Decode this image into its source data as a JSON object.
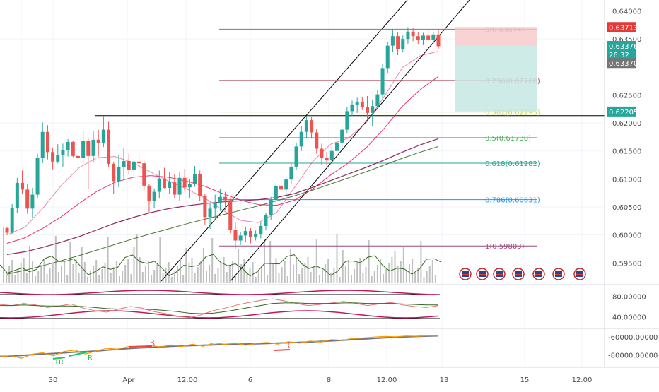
{
  "colors": {
    "candle_up": "#26a69a",
    "candle_down": "#ef5350",
    "grid": "#f0f3fa",
    "axis_text": "#4a4a4a",
    "fib_0": "#787b86",
    "fib_0236": "#b2475a",
    "fib_0382": "#c6d64a",
    "fib_05": "#4caf50",
    "fib_0618": "#26a69a",
    "fib_0786": "#2196f3",
    "fib_1": "#9c4a7e",
    "ma_fast": "#e91e63",
    "ma_slow": "#880e4f",
    "ma_long": "#33691e",
    "volume": "#b0b0b0",
    "rsi": "#e57373",
    "osc_main": "#ff9800",
    "osc_signal": "#757575",
    "channel": "#000000"
  },
  "chart_data": [
    {
      "type": "candlestick",
      "x_labels": [
        "30",
        "Apr",
        "12:00",
        "6",
        "8",
        "12:00",
        "13",
        "15",
        "12:00"
      ],
      "price_ticks": [
        "0.64000",
        "0.63500",
        "0.62500",
        "0.62000",
        "0.61500",
        "0.61000",
        "0.60500",
        "0.60000",
        "0.59500"
      ],
      "ylim": [
        0.5915,
        0.6412
      ],
      "fib_levels": [
        {
          "label": "0(0.63674)",
          "value": 0.63674
        },
        {
          "label": "0.236(0.62760)",
          "value": 0.6276
        },
        {
          "label": "0.382(0.62195)",
          "value": 0.62195
        },
        {
          "label": "0.5(0.61738)",
          "value": 0.61738
        },
        {
          "label": "0.618(0.61282)",
          "value": 0.61282
        },
        {
          "label": "0.786(0.60631)",
          "value": 0.60631
        },
        {
          "label": "1(0.59803)",
          "value": 0.59803
        }
      ],
      "price_badges": [
        {
          "label": "0.63713",
          "value": 0.63713,
          "color": "#e53935"
        },
        {
          "label": "0.63376",
          "value": 0.63376,
          "color": "#26a69a"
        },
        {
          "label": "26:32",
          "value": 0.63225,
          "color": "#26a69a"
        },
        {
          "label": "0.63370",
          "value": 0.6307,
          "color": "#757575"
        },
        {
          "label": "0.62205",
          "value": 0.62205,
          "color": "#26a69a"
        }
      ],
      "horizontal_line": 0.6213,
      "ohlc": [
        [
          0.6012,
          0.6015,
          0.6,
          0.6004
        ],
        [
          0.6004,
          0.6055,
          0.6001,
          0.6048
        ],
        [
          0.6048,
          0.6102,
          0.604,
          0.6093
        ],
        [
          0.6093,
          0.6115,
          0.6073,
          0.6081
        ],
        [
          0.6081,
          0.6092,
          0.6038,
          0.6047
        ],
        [
          0.6047,
          0.6084,
          0.6031,
          0.6072
        ],
        [
          0.6072,
          0.6145,
          0.6065,
          0.6138
        ],
        [
          0.6138,
          0.6201,
          0.6128,
          0.6184
        ],
        [
          0.6184,
          0.6196,
          0.6135,
          0.6148
        ],
        [
          0.6148,
          0.6156,
          0.6117,
          0.6131
        ],
        [
          0.6131,
          0.6162,
          0.6128,
          0.6143
        ],
        [
          0.6143,
          0.6163,
          0.6122,
          0.6152
        ],
        [
          0.6152,
          0.6171,
          0.614,
          0.6166
        ],
        [
          0.6166,
          0.6168,
          0.6139,
          0.6141
        ],
        [
          0.6141,
          0.615,
          0.6114,
          0.6137
        ],
        [
          0.6137,
          0.6185,
          0.6127,
          0.6168
        ],
        [
          0.6168,
          0.6172,
          0.6082,
          0.6141
        ],
        [
          0.6141,
          0.6186,
          0.6129,
          0.617
        ],
        [
          0.617,
          0.6188,
          0.614,
          0.6164
        ],
        [
          0.6164,
          0.6212,
          0.6157,
          0.6188
        ],
        [
          0.6188,
          0.6202,
          0.6122,
          0.6127
        ],
        [
          0.6127,
          0.6131,
          0.6073,
          0.6096
        ],
        [
          0.6096,
          0.6143,
          0.6085,
          0.6121
        ],
        [
          0.6121,
          0.6155,
          0.6101,
          0.6132
        ],
        [
          0.6132,
          0.6145,
          0.6109,
          0.6116
        ],
        [
          0.6116,
          0.6136,
          0.6105,
          0.6131
        ],
        [
          0.6131,
          0.6145,
          0.6112,
          0.6128
        ],
        [
          0.6128,
          0.6132,
          0.608,
          0.6088
        ],
        [
          0.6088,
          0.6091,
          0.6039,
          0.6061
        ],
        [
          0.6061,
          0.6083,
          0.6048,
          0.6077
        ],
        [
          0.6077,
          0.6115,
          0.6065,
          0.6101
        ],
        [
          0.6101,
          0.612,
          0.6083,
          0.6084
        ],
        [
          0.6084,
          0.6112,
          0.6074,
          0.6094
        ],
        [
          0.6094,
          0.6108,
          0.6066,
          0.6072
        ],
        [
          0.6072,
          0.6113,
          0.606,
          0.6102
        ],
        [
          0.6102,
          0.6118,
          0.6078,
          0.6085
        ],
        [
          0.6085,
          0.61,
          0.6066,
          0.6091
        ],
        [
          0.6091,
          0.6123,
          0.6086,
          0.6108
        ],
        [
          0.6108,
          0.6115,
          0.606,
          0.607
        ],
        [
          0.607,
          0.6074,
          0.6018,
          0.6032
        ],
        [
          0.6032,
          0.6058,
          0.6011,
          0.6047
        ],
        [
          0.6047,
          0.6072,
          0.6026,
          0.6057
        ],
        [
          0.6057,
          0.6082,
          0.6043,
          0.6068
        ],
        [
          0.6068,
          0.6077,
          0.6045,
          0.6062
        ],
        [
          0.6062,
          0.6065,
          0.6003,
          0.6009
        ],
        [
          0.6009,
          0.6023,
          0.5976,
          0.599
        ],
        [
          0.599,
          0.6005,
          0.5982,
          0.5999
        ],
        [
          0.5999,
          0.6015,
          0.5988,
          0.6007
        ],
        [
          0.6007,
          0.6012,
          0.5985,
          0.5996
        ],
        [
          0.5996,
          0.6008,
          0.599,
          0.6001
        ],
        [
          0.6001,
          0.6022,
          0.5994,
          0.6016
        ],
        [
          0.6016,
          0.604,
          0.6008,
          0.6035
        ],
        [
          0.6035,
          0.6068,
          0.6027,
          0.6063
        ],
        [
          0.6063,
          0.6092,
          0.6052,
          0.6088
        ],
        [
          0.6088,
          0.61,
          0.6064,
          0.6081
        ],
        [
          0.6081,
          0.6103,
          0.6071,
          0.6099
        ],
        [
          0.6099,
          0.6128,
          0.609,
          0.6122
        ],
        [
          0.6122,
          0.6165,
          0.6116,
          0.6158
        ],
        [
          0.6158,
          0.6195,
          0.615,
          0.6184
        ],
        [
          0.6184,
          0.6212,
          0.6173,
          0.6205
        ],
        [
          0.6205,
          0.6211,
          0.6172,
          0.6183
        ],
        [
          0.6183,
          0.619,
          0.6145,
          0.6154
        ],
        [
          0.6154,
          0.6163,
          0.6125,
          0.6137
        ],
        [
          0.6137,
          0.6148,
          0.6124,
          0.6133
        ],
        [
          0.6133,
          0.6155,
          0.6126,
          0.615
        ],
        [
          0.615,
          0.6172,
          0.6141,
          0.6165
        ],
        [
          0.6165,
          0.6195,
          0.6157,
          0.6188
        ],
        [
          0.6188,
          0.6228,
          0.6181,
          0.6221
        ],
        [
          0.6221,
          0.624,
          0.6212,
          0.6233
        ],
        [
          0.6233,
          0.6245,
          0.6218,
          0.6238
        ],
        [
          0.6238,
          0.6247,
          0.6223,
          0.6229
        ],
        [
          0.6229,
          0.6248,
          0.6208,
          0.6218
        ],
        [
          0.6218,
          0.6242,
          0.6195,
          0.623
        ],
        [
          0.623,
          0.6258,
          0.6225,
          0.6251
        ],
        [
          0.6251,
          0.6305,
          0.6243,
          0.6298
        ],
        [
          0.6298,
          0.6345,
          0.6289,
          0.6338
        ],
        [
          0.6338,
          0.6368,
          0.6326,
          0.6355
        ],
        [
          0.6355,
          0.6362,
          0.6321,
          0.6332
        ],
        [
          0.6332,
          0.6356,
          0.6326,
          0.635
        ],
        [
          0.635,
          0.6371,
          0.6341,
          0.6363
        ],
        [
          0.6363,
          0.637,
          0.6346,
          0.6355
        ],
        [
          0.6355,
          0.6362,
          0.6341,
          0.6348
        ],
        [
          0.6348,
          0.6361,
          0.6339,
          0.6356
        ],
        [
          0.6356,
          0.6367,
          0.6345,
          0.6349
        ],
        [
          0.6349,
          0.6363,
          0.634,
          0.6358
        ],
        [
          0.6358,
          0.6366,
          0.6332,
          0.6337
        ]
      ],
      "moving_averages": [
        {
          "values": [
            0.6,
            0.6014,
            0.6048,
            0.6088,
            0.612,
            0.6138,
            0.614,
            0.6129,
            0.6112,
            0.6096,
            0.6082,
            0.6066,
            0.6044,
            0.6026,
            0.6022,
            0.604,
            0.6085,
            0.6131,
            0.6162,
            0.6173,
            0.6201,
            0.6248,
            0.6299,
            0.632,
            0.6328
          ]
        },
        {
          "values": [
            0.5985,
            0.5995,
            0.6012,
            0.6032,
            0.6056,
            0.6078,
            0.6094,
            0.6103,
            0.6106,
            0.6103,
            0.6096,
            0.6087,
            0.6074,
            0.6062,
            0.6054,
            0.6053,
            0.6062,
            0.6082,
            0.6107,
            0.6129,
            0.6156,
            0.6191,
            0.623,
            0.626,
            0.6283
          ]
        },
        {
          "values": [
            0.5965,
            0.597,
            0.5978,
            0.5987,
            0.5997,
            0.6009,
            0.6021,
            0.6031,
            0.604,
            0.6047,
            0.6052,
            0.6056,
            0.6059,
            0.6061,
            0.6063,
            0.6067,
            0.6074,
            0.6085,
            0.6097,
            0.6109,
            0.6121,
            0.6134,
            0.6148,
            0.6161,
            0.6172
          ]
        },
        {
          "values": [
            0.593,
            0.5937,
            0.5945,
            0.5954,
            0.5963,
            0.5973,
            0.5983,
            0.5993,
            0.6002,
            0.6011,
            0.602,
            0.6028,
            0.6036,
            0.6044,
            0.6052,
            0.6061,
            0.607,
            0.608,
            0.6091,
            0.6102,
            0.6113,
            0.6125,
            0.6137,
            0.6148,
            0.6158
          ]
        }
      ]
    },
    {
      "type": "line",
      "yticks": [
        "80.00000",
        "40.00000"
      ],
      "ylim": [
        20,
        100
      ],
      "series": [
        {
          "values": [
            64,
            62,
            66,
            63,
            58,
            61,
            65,
            57,
            52,
            49,
            55,
            60,
            57,
            50,
            46,
            41,
            38,
            44,
            52,
            57,
            63,
            68,
            72,
            75,
            71,
            66,
            62,
            64,
            67,
            70,
            66,
            62,
            65,
            68,
            63,
            60,
            58,
            62
          ]
        },
        {
          "values": [
            62,
            62,
            63,
            62,
            61,
            61,
            61,
            60,
            58,
            56,
            55,
            55,
            55,
            54,
            52,
            50,
            47,
            46,
            47,
            50,
            54,
            58,
            62,
            66,
            67,
            67,
            66,
            66,
            66,
            67,
            67,
            66,
            66,
            66,
            65,
            64,
            63,
            63
          ]
        }
      ]
    },
    {
      "type": "line",
      "yticks": [
        "-60000.00000",
        "-80000.00000"
      ],
      "ylim": [
        -92000,
        -52000
      ],
      "annotations": [
        "R",
        "R",
        "R",
        "R",
        "R"
      ],
      "series": [
        {
          "values": [
            -82000,
            -80500,
            -83500,
            -79000,
            -77500,
            -80800,
            -76000,
            -74500,
            -78800,
            -75500,
            -72500,
            -73500,
            -70500,
            -71800,
            -69200,
            -71000,
            -68800,
            -70500,
            -68000,
            -70200,
            -66500,
            -68000,
            -66800,
            -69200,
            -66900,
            -66000,
            -67800,
            -65200,
            -66800,
            -64500,
            -65600,
            -62800,
            -63600,
            -61500,
            -61000,
            -60000,
            -59400,
            -59800,
            -58800,
            -59100,
            -58500,
            -58300
          ]
        },
        {
          "values": [
            -81500,
            -81200,
            -80500,
            -79600,
            -78800,
            -78300,
            -77500,
            -76700,
            -76200,
            -75500,
            -74500,
            -73600,
            -72800,
            -72100,
            -71500,
            -70900,
            -70300,
            -69900,
            -69500,
            -69100,
            -68600,
            -68200,
            -67900,
            -67800,
            -67500,
            -67100,
            -66700,
            -66300,
            -65900,
            -65400,
            -64900,
            -64200,
            -63500,
            -62900,
            -62200,
            -61500,
            -60900,
            -60300,
            -59800,
            -59400,
            -59000,
            -58700
          ]
        }
      ]
    }
  ]
}
